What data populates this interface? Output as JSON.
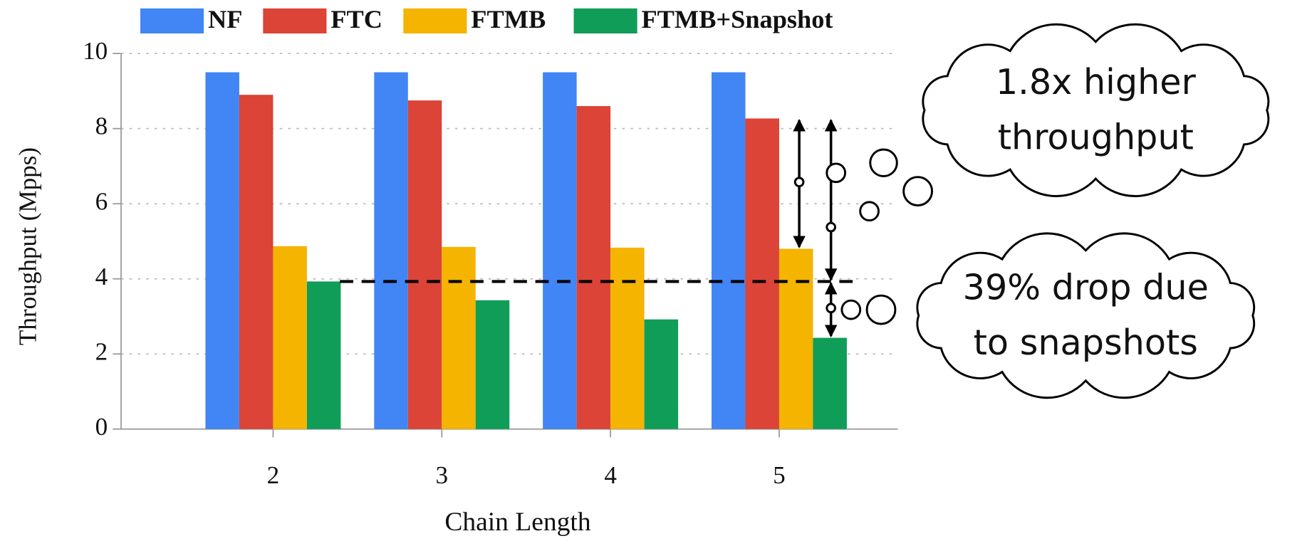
{
  "chart_data": {
    "type": "bar",
    "x_label": "Chain Length",
    "y_label": "Throughput (Mpps)",
    "categories": [
      "2",
      "3",
      "4",
      "5"
    ],
    "series": [
      {
        "name": "NF",
        "color": "#4285f4",
        "values": [
          9.5,
          9.5,
          9.5,
          9.5
        ]
      },
      {
        "name": "FTC",
        "color": "#db4437",
        "values": [
          8.9,
          8.75,
          8.6,
          8.27
        ]
      },
      {
        "name": "FTMB",
        "color": "#f4b400",
        "values": [
          4.87,
          4.85,
          4.83,
          4.8
        ]
      },
      {
        "name": "FTMB+Snapshot",
        "color": "#0f9d58",
        "values": [
          3.93,
          3.43,
          2.92,
          2.43
        ]
      }
    ],
    "ylim": [
      0,
      10
    ],
    "yticks": [
      0,
      2,
      4,
      6,
      8,
      10
    ],
    "grid": true,
    "legend": "top",
    "reference_line": 3.93,
    "annotations": [
      {
        "lines": [
          "1.8x higher",
          "throughput"
        ]
      },
      {
        "lines": [
          "39% drop due",
          "to snapshots"
        ]
      }
    ]
  }
}
